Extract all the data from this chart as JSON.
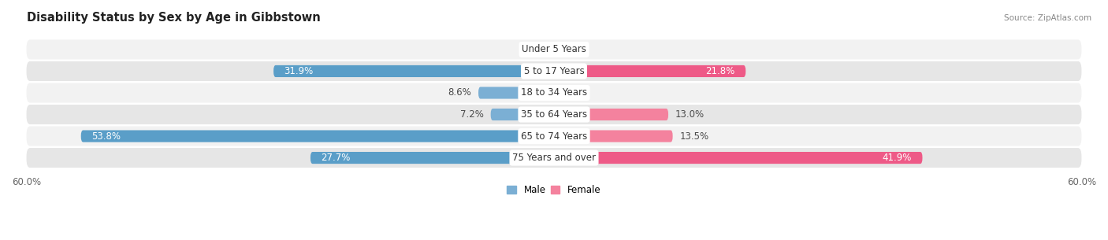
{
  "title": "Disability Status by Sex by Age in Gibbstown",
  "source": "Source: ZipAtlas.com",
  "categories": [
    "Under 5 Years",
    "5 to 17 Years",
    "18 to 34 Years",
    "35 to 64 Years",
    "65 to 74 Years",
    "75 Years and over"
  ],
  "male_values": [
    0.0,
    31.9,
    8.6,
    7.2,
    53.8,
    27.7
  ],
  "female_values": [
    0.0,
    21.8,
    0.6,
    13.0,
    13.5,
    41.9
  ],
  "male_color": "#7bafd4",
  "female_color": "#f4829e",
  "male_color_large": "#5a9ec8",
  "female_color_large": "#ee5a87",
  "row_bg_color_light": "#f2f2f2",
  "row_bg_color_dark": "#e6e6e6",
  "x_max": 60.0,
  "label_fontsize": 8.5,
  "title_fontsize": 10.5,
  "background_color": "#ffffff",
  "text_color_dark": "#4a4a4a",
  "text_color_white": "#ffffff"
}
